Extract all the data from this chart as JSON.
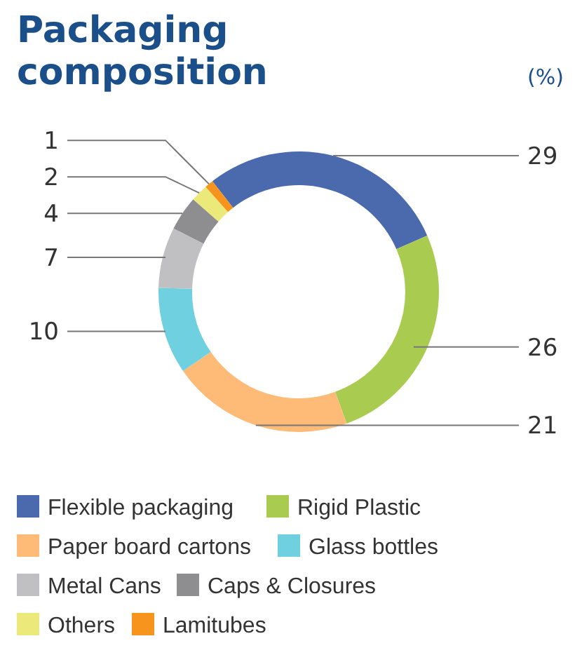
{
  "chart_data": {
    "type": "donut",
    "title": "Packaging composition",
    "subtitle": "(%)",
    "categories": [
      "Flexible packaging",
      "Rigid Plastic",
      "Paper board cartons",
      "Glass bottles",
      "Metal Cans",
      "Caps & Closures",
      "Others",
      "Lamitubes"
    ],
    "values": [
      29,
      26,
      21,
      10,
      7,
      4,
      2,
      1
    ],
    "colors": [
      "#4a6aad",
      "#a9cc50",
      "#fdbb77",
      "#6fd0e0",
      "#c0c0c2",
      "#8e8e90",
      "#ebe97a",
      "#f7941d"
    ],
    "data_labels": true,
    "legend": "bottom"
  }
}
